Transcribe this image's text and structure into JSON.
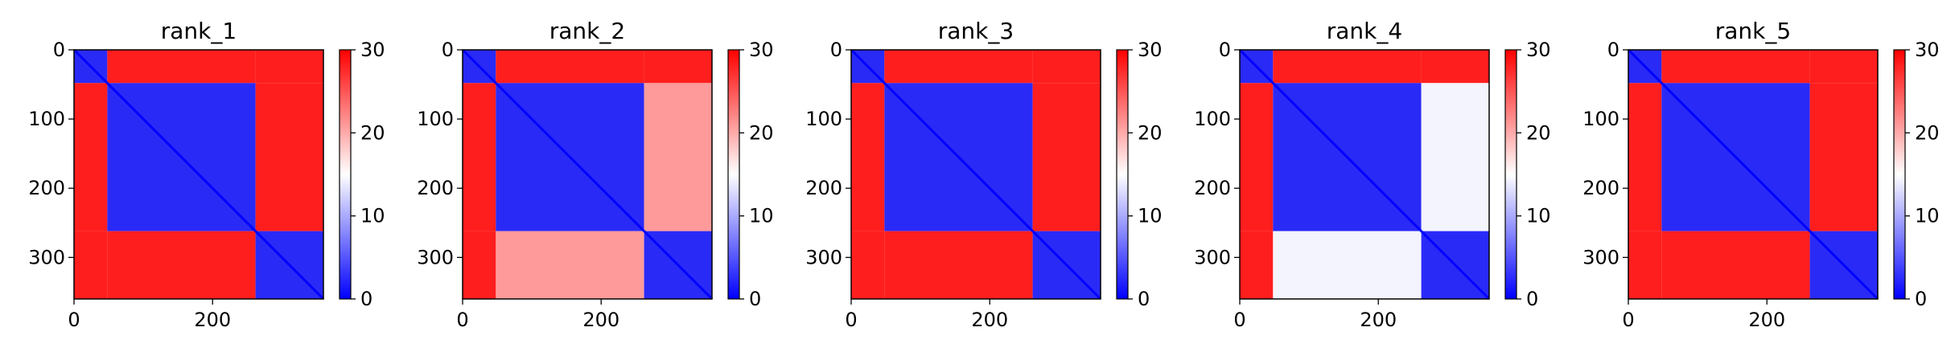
{
  "chart_data": [
    {
      "type": "heatmap",
      "title": "rank_1",
      "n": 360,
      "domains": [
        [
          0,
          48
        ],
        [
          48,
          262
        ],
        [
          262,
          360
        ]
      ],
      "inter_shade": [
        [
          "A",
          "A",
          "A"
        ],
        [
          "A",
          "A",
          "A"
        ],
        [
          "A",
          "A",
          "A"
        ]
      ],
      "x_ticks": [
        0,
        200
      ],
      "y_ticks": [
        0,
        100,
        200,
        300
      ],
      "colorbar": {
        "min": 0,
        "max": 30,
        "ticks": [
          0,
          10,
          20,
          30
        ],
        "colors": [
          "#0000ff",
          "#ffffff",
          "#ff0000"
        ]
      }
    },
    {
      "type": "heatmap",
      "title": "rank_2",
      "n": 360,
      "domains": [
        [
          0,
          48
        ],
        [
          48,
          262
        ],
        [
          262,
          360
        ]
      ],
      "inter_shade": [
        [
          "A",
          "A",
          "A"
        ],
        [
          "A",
          "A",
          "B"
        ],
        [
          "A",
          "B",
          "A"
        ]
      ],
      "x_ticks": [
        0,
        200
      ],
      "y_ticks": [
        0,
        100,
        200,
        300
      ],
      "colorbar": {
        "min": 0,
        "max": 30,
        "ticks": [
          0,
          10,
          20,
          30
        ],
        "colors": [
          "#0000ff",
          "#ffffff",
          "#ff0000"
        ]
      }
    },
    {
      "type": "heatmap",
      "title": "rank_3",
      "n": 360,
      "domains": [
        [
          0,
          48
        ],
        [
          48,
          262
        ],
        [
          262,
          360
        ]
      ],
      "inter_shade": [
        [
          "A",
          "A",
          "A"
        ],
        [
          "A",
          "A",
          "A"
        ],
        [
          "A",
          "A",
          "A"
        ]
      ],
      "x_ticks": [
        0,
        200
      ],
      "y_ticks": [
        0,
        100,
        200,
        300
      ],
      "colorbar": {
        "min": 0,
        "max": 30,
        "ticks": [
          0,
          10,
          20,
          30
        ],
        "colors": [
          "#0000ff",
          "#ffffff",
          "#ff0000"
        ]
      }
    },
    {
      "type": "heatmap",
      "title": "rank_4",
      "n": 360,
      "domains": [
        [
          0,
          48
        ],
        [
          48,
          262
        ],
        [
          262,
          360
        ]
      ],
      "inter_shade": [
        [
          "A",
          "A",
          "A"
        ],
        [
          "A",
          "A",
          "C"
        ],
        [
          "A",
          "C",
          "A"
        ]
      ],
      "x_ticks": [
        0,
        200
      ],
      "y_ticks": [
        0,
        100,
        200,
        300
      ],
      "colorbar": {
        "min": 0,
        "max": 30,
        "ticks": [
          0,
          10,
          20,
          30
        ],
        "colors": [
          "#0000ff",
          "#ffffff",
          "#ff0000"
        ]
      }
    },
    {
      "type": "heatmap",
      "title": "rank_5",
      "n": 360,
      "domains": [
        [
          0,
          48
        ],
        [
          48,
          262
        ],
        [
          262,
          360
        ]
      ],
      "inter_shade": [
        [
          "A",
          "A",
          "A"
        ],
        [
          "A",
          "A",
          "A"
        ],
        [
          "A",
          "A",
          "A"
        ]
      ],
      "x_ticks": [
        0,
        200
      ],
      "y_ticks": [
        0,
        100,
        200,
        300
      ],
      "colorbar": {
        "min": 0,
        "max": 30,
        "ticks": [
          0,
          10,
          20,
          30
        ],
        "colors": [
          "#0000ff",
          "#ffffff",
          "#ff0000"
        ]
      }
    }
  ],
  "shades": {
    "A": "#ff1e1e",
    "B": "#ff9a9a",
    "C": "#f4f4ff",
    "intra": "#2a2af7",
    "diagonal": "#0000ff"
  }
}
